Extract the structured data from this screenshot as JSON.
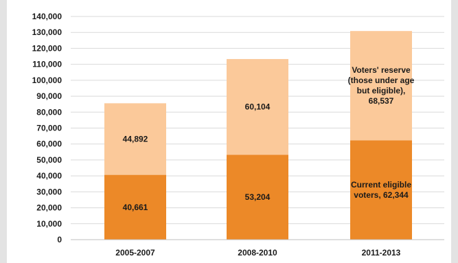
{
  "chart_data": {
    "type": "bar",
    "stacked": true,
    "categories": [
      "2005-2007",
      "2008-2010",
      "2011-2013"
    ],
    "series": [
      {
        "name": "",
        "values": [
          40661,
          53204,
          62344
        ],
        "color": "#ec8928",
        "labels": [
          "40,661",
          "53,204",
          "Current eligible\nvoters, 62,344"
        ]
      },
      {
        "name": "",
        "values": [
          44892,
          60104,
          68537
        ],
        "color": "#fbc99a",
        "labels": [
          "44,892",
          "60,104",
          "Voters' reserve\n(those under age\nbut eligible),\n68,537"
        ]
      }
    ],
    "ylim": [
      0,
      140000
    ],
    "yticks": [
      "0",
      "10,000",
      "20,000",
      "30,000",
      "40,000",
      "50,000",
      "60,000",
      "70,000",
      "80,000",
      "90,000",
      "100,000",
      "110,000",
      "120,000",
      "130,000",
      "140,000"
    ],
    "grid": true,
    "title": "",
    "xlabel": "",
    "ylabel": ""
  }
}
